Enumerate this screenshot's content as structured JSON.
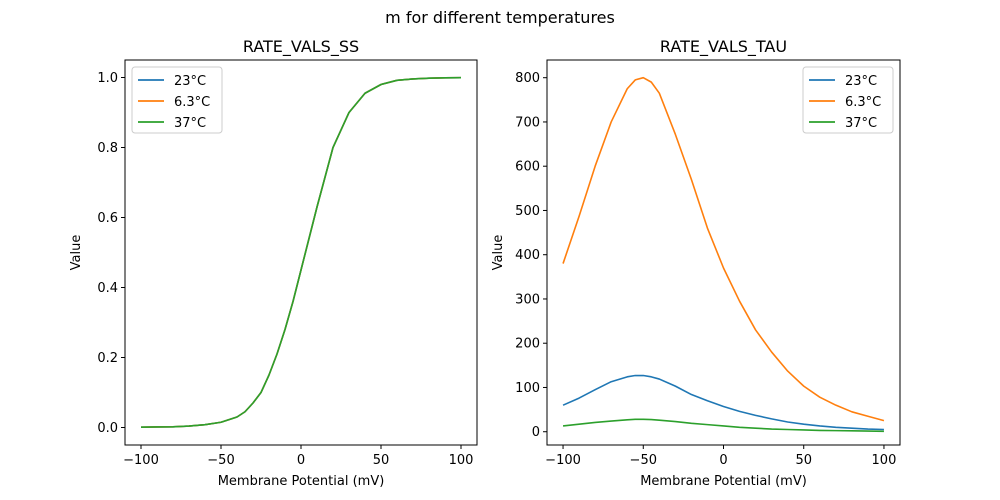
{
  "suptitle": "m for different temperatures",
  "chart_data": [
    {
      "type": "line",
      "title": "RATE_VALS_SS",
      "xlabel": "Membrane Potential (mV)",
      "ylabel": "Value",
      "xlim": [
        -110,
        110
      ],
      "ylim": [
        -0.05,
        1.05
      ],
      "xticks": [
        -100,
        -50,
        0,
        50,
        100
      ],
      "xtick_labels": [
        "−100",
        "−50",
        "0",
        "50",
        "100"
      ],
      "yticks": [
        0.0,
        0.2,
        0.4,
        0.6,
        0.8,
        1.0
      ],
      "ytick_labels": [
        "0.0",
        "0.2",
        "0.4",
        "0.6",
        "0.8",
        "1.0"
      ],
      "legend": "upper-left",
      "grid": false,
      "x": [
        -100,
        -90,
        -80,
        -70,
        -60,
        -50,
        -40,
        -35,
        -30,
        -25,
        -20,
        -15,
        -10,
        -5,
        0,
        5,
        10,
        20,
        30,
        40,
        50,
        60,
        70,
        80,
        90,
        100
      ],
      "series": [
        {
          "name": "23°C",
          "color": "#1f77b4",
          "values": [
            0.001,
            0.0015,
            0.002,
            0.004,
            0.008,
            0.015,
            0.03,
            0.045,
            0.07,
            0.1,
            0.15,
            0.21,
            0.28,
            0.36,
            0.45,
            0.54,
            0.63,
            0.8,
            0.9,
            0.955,
            0.98,
            0.992,
            0.996,
            0.998,
            0.999,
            0.9995
          ]
        },
        {
          "name": "6.3°C",
          "color": "#ff7f0e",
          "values": [
            0.001,
            0.0015,
            0.002,
            0.004,
            0.008,
            0.015,
            0.03,
            0.045,
            0.07,
            0.1,
            0.15,
            0.21,
            0.28,
            0.36,
            0.45,
            0.54,
            0.63,
            0.8,
            0.9,
            0.955,
            0.98,
            0.992,
            0.996,
            0.998,
            0.999,
            0.9995
          ]
        },
        {
          "name": "37°C",
          "color": "#2ca02c",
          "values": [
            0.001,
            0.0015,
            0.002,
            0.004,
            0.008,
            0.015,
            0.03,
            0.045,
            0.07,
            0.1,
            0.15,
            0.21,
            0.28,
            0.36,
            0.45,
            0.54,
            0.63,
            0.8,
            0.9,
            0.955,
            0.98,
            0.992,
            0.996,
            0.998,
            0.999,
            0.9995
          ]
        }
      ]
    },
    {
      "type": "line",
      "title": "RATE_VALS_TAU",
      "xlabel": "Membrane Potential (mV)",
      "ylabel": "Value",
      "xlim": [
        -110,
        110
      ],
      "ylim": [
        -30,
        840
      ],
      "xticks": [
        -100,
        -50,
        0,
        50,
        100
      ],
      "xtick_labels": [
        "−100",
        "−50",
        "0",
        "50",
        "100"
      ],
      "yticks": [
        0,
        100,
        200,
        300,
        400,
        500,
        600,
        700,
        800
      ],
      "ytick_labels": [
        "0",
        "100",
        "200",
        "300",
        "400",
        "500",
        "600",
        "700",
        "800"
      ],
      "legend": "upper-right",
      "grid": false,
      "x": [
        -100,
        -90,
        -80,
        -70,
        -60,
        -55,
        -50,
        -45,
        -40,
        -30,
        -20,
        -10,
        0,
        10,
        20,
        30,
        40,
        50,
        60,
        70,
        80,
        90,
        100
      ],
      "series": [
        {
          "name": "23°C",
          "color": "#1f77b4",
          "values": [
            60,
            76,
            95,
            113,
            124,
            127,
            127,
            124,
            119,
            103,
            84,
            70,
            57,
            46,
            37,
            29,
            22,
            17,
            13,
            10,
            8,
            6,
            5
          ]
        },
        {
          "name": "6.3°C",
          "color": "#ff7f0e",
          "values": [
            380,
            487,
            600,
            700,
            775,
            795,
            800,
            790,
            765,
            672,
            570,
            460,
            370,
            295,
            230,
            180,
            137,
            103,
            78,
            60,
            45,
            35,
            25
          ]
        },
        {
          "name": "37°C",
          "color": "#2ca02c",
          "values": [
            13,
            17,
            21,
            24,
            27,
            28,
            28,
            27.5,
            26,
            23,
            19,
            16,
            13,
            10,
            8,
            6,
            5,
            4,
            3,
            2.5,
            2,
            1.5,
            1
          ]
        }
      ]
    }
  ]
}
